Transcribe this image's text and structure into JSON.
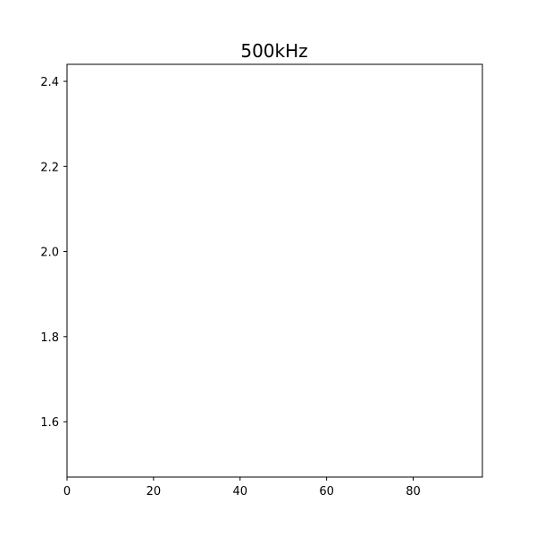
{
  "chart_data": {
    "type": "line",
    "title": "500kHz",
    "xlabel": "",
    "ylabel": "",
    "xlim": [
      0,
      96
    ],
    "ylim": [
      1.47,
      2.44
    ],
    "xticks": [
      0,
      20,
      40,
      60,
      80
    ],
    "xtick_labels": [
      "0",
      "20",
      "40",
      "60",
      "80"
    ],
    "yticks": [
      1.6,
      1.8,
      2.0,
      2.2,
      2.4
    ],
    "ytick_labels": [
      "1.6",
      "1.8",
      "2.0",
      "2.2",
      "2.4"
    ],
    "grid": false,
    "legend": "none",
    "series": []
  },
  "colors": {
    "axes": "#000000",
    "background": "#ffffff"
  }
}
